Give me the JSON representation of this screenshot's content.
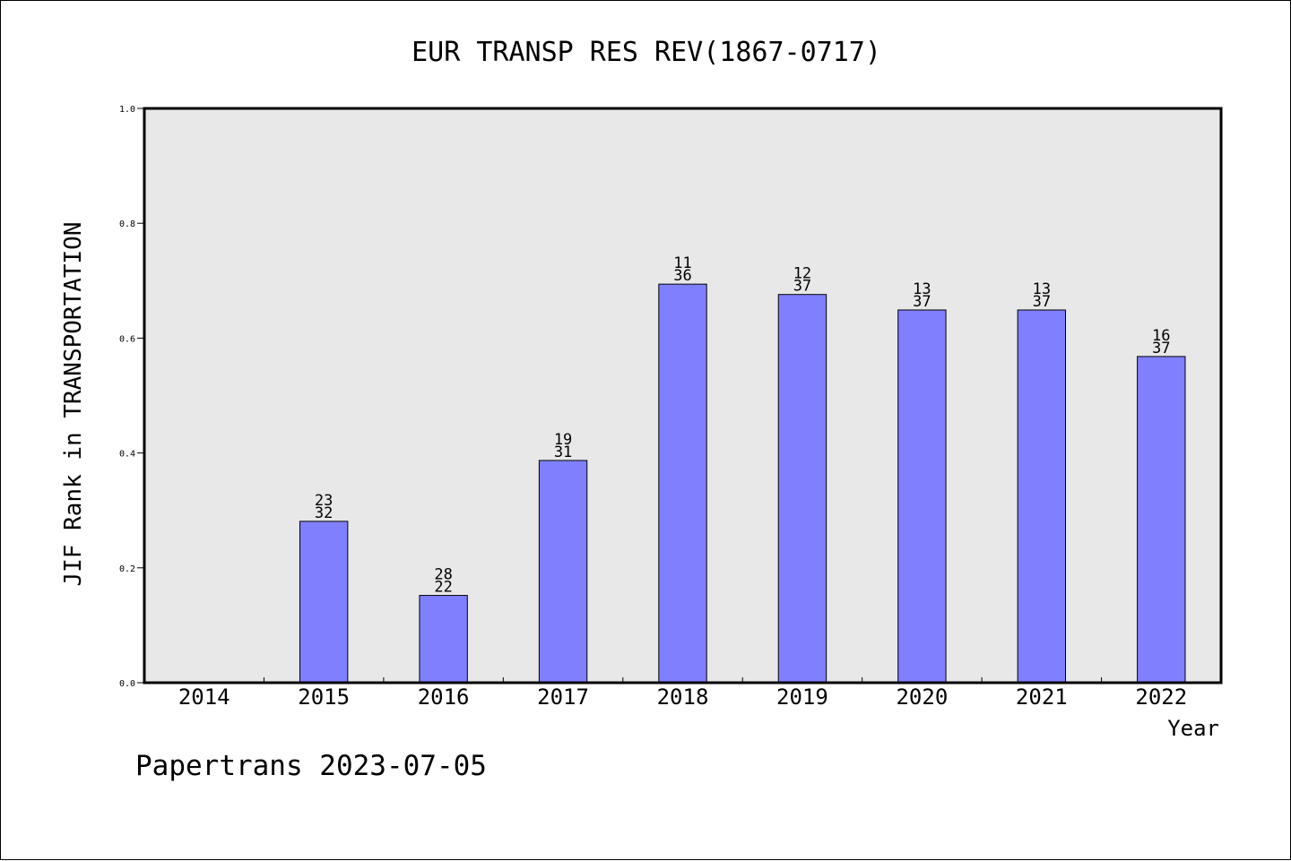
{
  "chart_data": {
    "type": "bar",
    "title": "EUR TRANSP RES REV(1867-0717)",
    "xlabel": "Year",
    "ylabel": "JIF Rank in TRANSPORTATION",
    "categories": [
      "2014",
      "2015",
      "2016",
      "2017",
      "2018",
      "2019",
      "2020",
      "2021",
      "2022"
    ],
    "values": [
      null,
      0.281,
      0.152,
      0.387,
      0.694,
      0.676,
      0.649,
      0.649,
      0.568
    ],
    "label_top": [
      null,
      "23",
      "28",
      "19",
      "11",
      "12",
      "13",
      "13",
      "16"
    ],
    "label_bottom": [
      null,
      "32",
      "22",
      "31",
      "36",
      "37",
      "37",
      "37",
      "37"
    ],
    "ylim": [
      0,
      1.0
    ],
    "yticks": [
      "0.0",
      "0.2",
      "0.4",
      "0.6",
      "0.8",
      "1.0"
    ],
    "grid": false,
    "colors": {
      "plot_background": "#e8e8e8",
      "bar_fill": "#8080ff",
      "bar_stroke": "#000000"
    }
  },
  "footer": "Papertrans 2023-07-05"
}
